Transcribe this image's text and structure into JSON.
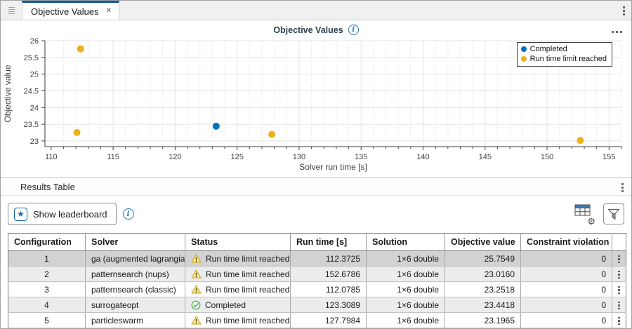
{
  "colors": {
    "tab_accent": "#10589E",
    "marker_blue": "#0072BD",
    "marker_orange": "#EDB120",
    "info_blue": "#2278B8",
    "star_blue": "#1467A8",
    "selected_row": "#D2D2D2",
    "striped_row": "#ECECEC"
  },
  "icons": {
    "close": "✕",
    "star": "★",
    "gear": "⚙",
    "info": "i"
  },
  "tab_bar": {
    "tab_label": "Objective Values"
  },
  "chart_data": {
    "type": "scatter",
    "title": "Objective Values",
    "xlabel": "Solver run time [s]",
    "ylabel": "Objective value",
    "xlim": [
      109.5,
      156
    ],
    "ylim": [
      22.83,
      26
    ],
    "xticks": [
      110,
      115,
      120,
      125,
      130,
      135,
      140,
      145,
      150,
      155
    ],
    "x_minor_step": 1,
    "yticks": [
      23,
      23.5,
      24,
      24.5,
      25,
      25.5,
      26
    ],
    "grid": true,
    "legend_position": "top-right",
    "series": [
      {
        "name": "Completed",
        "color": "#0072BD",
        "points": [
          {
            "x": 123.3089,
            "y": 23.4418
          }
        ]
      },
      {
        "name": "Run time limit reached",
        "color": "#EDB120",
        "points": [
          {
            "x": 112.3725,
            "y": 25.7549
          },
          {
            "x": 112.0785,
            "y": 23.2518
          },
          {
            "x": 127.7984,
            "y": 23.1965
          },
          {
            "x": 152.6786,
            "y": 23.016
          }
        ]
      }
    ]
  },
  "results": {
    "section_title": "Results Table",
    "toolbar": {
      "show_leaderboard_label": "Show leaderboard"
    },
    "table": {
      "columns": [
        {
          "key": "configuration",
          "label": "Configuration"
        },
        {
          "key": "solver",
          "label": "Solver"
        },
        {
          "key": "status",
          "label": "Status"
        },
        {
          "key": "run_time",
          "label": "Run time [s]"
        },
        {
          "key": "solution",
          "label": "Solution"
        },
        {
          "key": "objective_value",
          "label": "Objective value"
        },
        {
          "key": "constraint_violation",
          "label": "Constraint violation"
        }
      ],
      "rows": [
        {
          "configuration": "1",
          "solver": "ga (augmented lagrangian)",
          "status": "Run time limit reached",
          "status_type": "warning",
          "run_time": "112.3725",
          "solution": "1×6 double",
          "objective_value": "25.7549",
          "constraint_violation": "0",
          "selected": true
        },
        {
          "configuration": "2",
          "solver": "patternsearch (nups)",
          "status": "Run time limit reached",
          "status_type": "warning",
          "run_time": "152.6786",
          "solution": "1×6 double",
          "objective_value": "23.0160",
          "constraint_violation": "0",
          "selected": false
        },
        {
          "configuration": "3",
          "solver": "patternsearch (classic)",
          "status": "Run time limit reached",
          "status_type": "warning",
          "run_time": "112.0785",
          "solution": "1×6 double",
          "objective_value": "23.2518",
          "constraint_violation": "0",
          "selected": false
        },
        {
          "configuration": "4",
          "solver": "surrogateopt",
          "status": "Completed",
          "status_type": "completed",
          "run_time": "123.3089",
          "solution": "1×6 double",
          "objective_value": "23.4418",
          "constraint_violation": "0",
          "selected": false
        },
        {
          "configuration": "5",
          "solver": "particleswarm",
          "status": "Run time limit reached",
          "status_type": "warning",
          "run_time": "127.7984",
          "solution": "1×6 double",
          "objective_value": "23.1965",
          "constraint_violation": "0",
          "selected": false
        }
      ]
    }
  }
}
